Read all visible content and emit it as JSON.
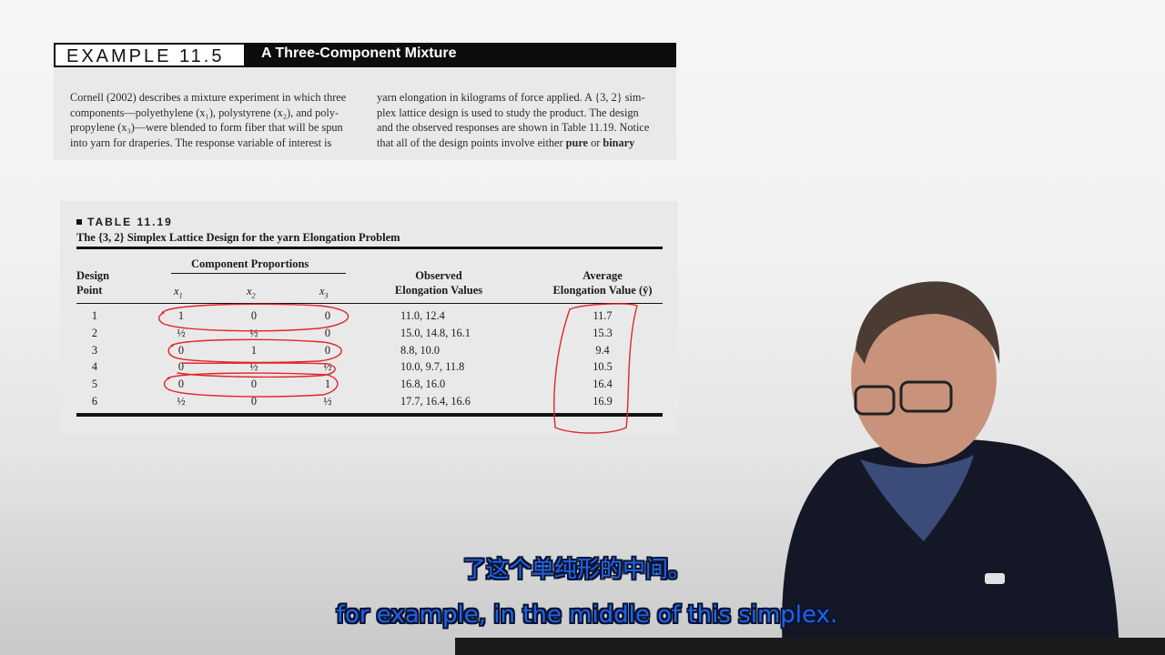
{
  "example": {
    "label": "EXAMPLE 11.5",
    "title": "A Three-Component Mixture",
    "para_left": [
      "Cornell (2002) describes a mixture experiment in which three",
      "components—polyethylene (x₁), polystyrene (x₂), and poly-",
      "propylene (x₃)—were blended to form fiber that will be spun",
      "into yarn for draperies. The response variable of interest is"
    ],
    "para_right": [
      "yarn elongation in kilograms of force applied. A {3, 2} sim-",
      "plex lattice design is used to study the product. The design",
      "and the observed responses are shown in Table 11.19. Notice",
      "that all of the design points involve either",
      "pure",
      "or",
      "binary"
    ]
  },
  "table": {
    "label": "TABLE 11.19",
    "caption": "The {3, 2} Simplex Lattice Design for the yarn Elongation Problem",
    "headers": {
      "design_point_1": "Design",
      "design_point_2": "Point",
      "group": "Component Proportions",
      "x1": "x",
      "x1_sub": "1",
      "x2": "x",
      "x2_sub": "2",
      "x3": "x",
      "x3_sub": "3",
      "observed_1": "Observed",
      "observed_2": "Elongation Values",
      "average_1": "Average",
      "average_2": "Elongation Value (ȳ)"
    },
    "rows": [
      {
        "point": "1",
        "x1": "1",
        "x2": "0",
        "x3": "0",
        "observed": "11.0, 12.4",
        "average": "11.7"
      },
      {
        "point": "2",
        "x1": "½",
        "x2": "½",
        "x3": "0",
        "observed": "15.0, 14.8, 16.1",
        "average": "15.3"
      },
      {
        "point": "3",
        "x1": "0",
        "x2": "1",
        "x3": "0",
        "observed": "8.8, 10.0",
        "average": "9.4"
      },
      {
        "point": "4",
        "x1": "0",
        "x2": "½",
        "x3": "½",
        "observed": "10.0, 9.7, 11.8",
        "average": "10.5"
      },
      {
        "point": "5",
        "x1": "0",
        "x2": "0",
        "x3": "1",
        "observed": "16.8, 16.0",
        "average": "16.4"
      },
      {
        "point": "6",
        "x1": "½",
        "x2": "0",
        "x3": "½",
        "observed": "17.7, 16.4, 16.6",
        "average": "16.9"
      }
    ]
  },
  "subtitles": {
    "chinese": "了这个单纯形的中间。",
    "english": "for example, in the middle of this simplex."
  },
  "colors": {
    "annotation": "#e0262b",
    "subtitle": "#1f63e6"
  }
}
